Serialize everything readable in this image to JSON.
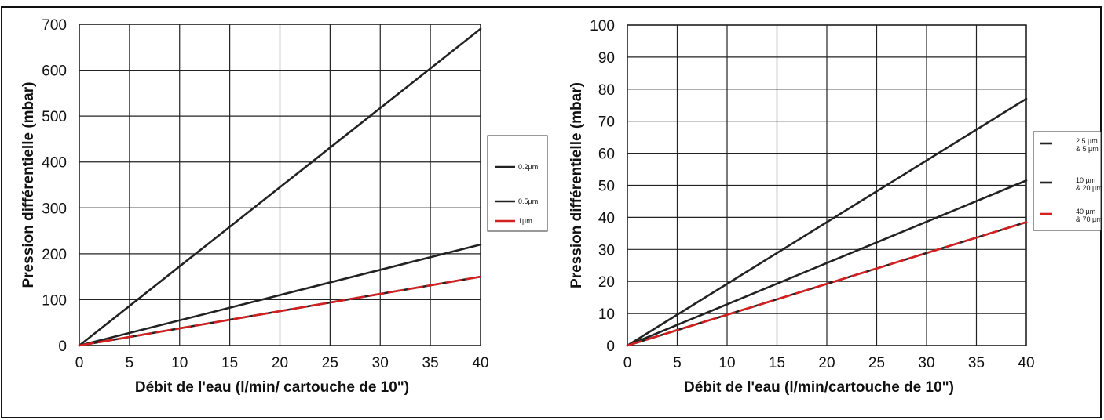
{
  "chart_data": [
    {
      "type": "line",
      "xlabel": "Débit de l'eau (l/min/ cartouche de 10\")",
      "ylabel": "Pression différentielle (mbar)",
      "xlim": [
        0,
        40
      ],
      "ylim": [
        0,
        700
      ],
      "x_ticks": [
        0,
        5,
        10,
        15,
        20,
        25,
        30,
        35,
        40
      ],
      "y_ticks": [
        0,
        100,
        200,
        300,
        400,
        500,
        600,
        700
      ],
      "grid": true,
      "legend_position": "right",
      "series": [
        {
          "name": "0.2µm",
          "color": "#222222",
          "dashed": false,
          "x": [
            0,
            40
          ],
          "y": [
            0,
            690
          ]
        },
        {
          "name": "0.5µm",
          "color": "#222222",
          "dashed": false,
          "x": [
            0,
            40
          ],
          "y": [
            0,
            220
          ]
        },
        {
          "name": "1µm",
          "color": "#d42020",
          "dashed": true,
          "x": [
            0,
            40
          ],
          "y": [
            0,
            150
          ]
        }
      ]
    },
    {
      "type": "line",
      "xlabel": "Débit de l'eau (l/min/cartouche de 10\")",
      "ylabel": "Pression différentielle (mbar)",
      "xlim": [
        0,
        40
      ],
      "ylim": [
        0,
        100
      ],
      "x_ticks": [
        0,
        5,
        10,
        15,
        20,
        25,
        30,
        35,
        40
      ],
      "y_ticks": [
        0,
        10,
        20,
        30,
        40,
        50,
        60,
        70,
        80,
        90,
        100
      ],
      "grid": true,
      "legend_position": "right",
      "series": [
        {
          "name": "2.5 µm\n& 5   µm",
          "color": "#222222",
          "dashed": false,
          "x": [
            0,
            40
          ],
          "y": [
            0,
            77
          ]
        },
        {
          "name": "10 µm\n& 20 µm",
          "color": "#222222",
          "dashed": false,
          "x": [
            0,
            40
          ],
          "y": [
            0,
            51.5
          ]
        },
        {
          "name": "40 µm\n& 70 µm",
          "color": "#d42020",
          "dashed": true,
          "x": [
            0,
            40
          ],
          "y": [
            0,
            38.5
          ]
        }
      ]
    }
  ]
}
